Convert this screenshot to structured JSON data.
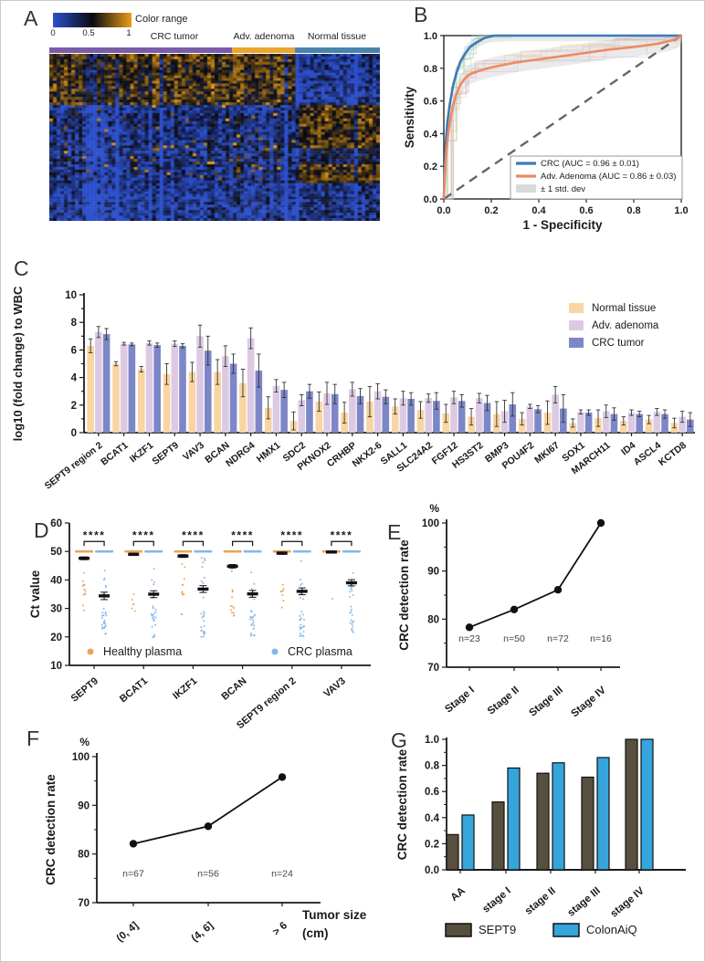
{
  "figure": {
    "panel_letters": [
      "A",
      "B",
      "C",
      "D",
      "E",
      "F",
      "G"
    ]
  },
  "chart_data": [
    {
      "panel": "A",
      "type": "heatmap",
      "colorbar": {
        "label": "Color range",
        "ticks": [
          "0",
          "0.5",
          "1"
        ],
        "gradient": [
          "#2d50cd",
          "#0a0a10",
          "#e89e16"
        ]
      },
      "groups": [
        {
          "label": "CRC tumor",
          "color": "#7a5ca8",
          "frac": 0.552
        },
        {
          "label": "Adv. adenoma",
          "color": "#eaa62d",
          "frac": 0.191
        },
        {
          "label": "Normal tissue",
          "color": "#4a84ad",
          "frac": 0.257
        }
      ],
      "blocks": [
        {
          "frac": 0.3,
          "means": [
            0.62,
            0.6,
            0.17
          ]
        },
        {
          "frac": 0.46,
          "means": [
            0.22,
            0.24,
            0.64
          ]
        },
        {
          "frac": 0.24,
          "means": [
            0.15,
            0.15,
            0.22
          ]
        }
      ],
      "colormap": [
        [
          45,
          80,
          205
        ],
        [
          10,
          10,
          16
        ],
        [
          232,
          158,
          22
        ]
      ],
      "value_range": [
        0,
        1
      ],
      "seed": 42
    },
    {
      "panel": "B",
      "type": "line",
      "xlabel": "1 - Specificity",
      "ylabel": "Sensitivity",
      "xlim": [
        0,
        1
      ],
      "ylim": [
        0,
        1
      ],
      "x_ticks": [
        "0.0",
        "0.2",
        "0.4",
        "0.6",
        "0.8",
        "1.0"
      ],
      "y_ticks": [
        "0.0",
        "0.2",
        "0.4",
        "0.6",
        "0.8",
        "1.0"
      ],
      "series": [
        {
          "name": "CRC (AUC = 0.96 ± 0.01)",
          "color": "#3d7ab5",
          "band": 0.035,
          "points": [
            [
              0,
              0
            ],
            [
              0.004,
              0.18
            ],
            [
              0.008,
              0.34
            ],
            [
              0.015,
              0.47
            ],
            [
              0.025,
              0.58
            ],
            [
              0.04,
              0.7
            ],
            [
              0.055,
              0.78
            ],
            [
              0.07,
              0.84
            ],
            [
              0.09,
              0.89
            ],
            [
              0.11,
              0.93
            ],
            [
              0.14,
              0.96
            ],
            [
              0.17,
              0.985
            ],
            [
              0.21,
              1
            ],
            [
              1,
              1
            ]
          ]
        },
        {
          "name": "Adv. Adenoma (AUC = 0.86 ± 0.03)",
          "color": "#ee8963",
          "band": 0.06,
          "points": [
            [
              0,
              0
            ],
            [
              0.004,
              0.12
            ],
            [
              0.01,
              0.28
            ],
            [
              0.02,
              0.42
            ],
            [
              0.035,
              0.55
            ],
            [
              0.05,
              0.63
            ],
            [
              0.07,
              0.7
            ],
            [
              0.09,
              0.74
            ],
            [
              0.11,
              0.765
            ],
            [
              0.15,
              0.785
            ],
            [
              0.2,
              0.805
            ],
            [
              0.3,
              0.835
            ],
            [
              0.4,
              0.855
            ],
            [
              0.5,
              0.875
            ],
            [
              0.6,
              0.895
            ],
            [
              0.7,
              0.915
            ],
            [
              0.8,
              0.93
            ],
            [
              0.9,
              0.95
            ],
            [
              0.97,
              0.975
            ],
            [
              1,
              1
            ]
          ]
        }
      ],
      "band_label": "± 1 std. dev",
      "band_color": "#bbbbbb",
      "fold_colors": [
        "#7fbf7f",
        "#5fb0a5",
        "#8fd0e8",
        "#a8c878",
        "#c5e0c5",
        "#e0c85a",
        "#e096bb",
        "#b9a5d8",
        "#efa898",
        "#d8b8c8",
        "#cccccc",
        "#e8d5a0"
      ],
      "diagonal": true,
      "seed": 7
    },
    {
      "panel": "C",
      "type": "bar",
      "ylabel": "log10 (fold change) to WBC",
      "ylim": [
        0,
        10
      ],
      "y_ticks": [
        "0",
        "2",
        "4",
        "6",
        "8",
        "10"
      ],
      "categories": [
        "SEPT9 region 2",
        "BCAT1",
        "IKZF1",
        "SEPT9",
        "VAV3",
        "BCAN",
        "NDRG4",
        "HMX1",
        "SDC2",
        "PKNOX2",
        "CRHBP",
        "NKX2-6",
        "SALL1",
        "SLC24A2",
        "FGF12",
        "HS3ST2",
        "BMP3",
        "POU4F2",
        "MKI67",
        "SOX1",
        "MARCH11",
        "ID4",
        "ASCL4",
        "KCTD8"
      ],
      "series": [
        {
          "name": "Normal tissue",
          "color": "#f8d5a2",
          "values": [
            6.3,
            5.0,
            4.6,
            4.25,
            4.4,
            4.4,
            3.6,
            1.8,
            0.85,
            2.25,
            1.45,
            2.25,
            1.9,
            1.65,
            1.4,
            1.15,
            1.35,
            1.0,
            1.45,
            0.7,
            1.05,
            0.85,
            0.95,
            0.7
          ],
          "errors": [
            0.5,
            0.15,
            0.2,
            0.75,
            0.7,
            0.9,
            1.0,
            0.8,
            0.65,
            0.7,
            0.75,
            1.1,
            0.55,
            0.6,
            0.65,
            0.6,
            0.9,
            0.45,
            0.85,
            0.3,
            0.6,
            0.3,
            0.3,
            0.35
          ]
        },
        {
          "name": "Adv. adenoma",
          "color": "#dccae4",
          "values": [
            7.3,
            6.45,
            6.5,
            6.45,
            7.0,
            5.55,
            6.85,
            3.4,
            2.35,
            2.85,
            3.15,
            3.0,
            2.5,
            2.5,
            2.55,
            2.5,
            1.55,
            1.9,
            2.75,
            1.5,
            1.55,
            1.45,
            1.5,
            1.15
          ],
          "errors": [
            0.4,
            0.1,
            0.15,
            0.2,
            0.8,
            0.75,
            0.75,
            0.45,
            0.4,
            0.8,
            0.5,
            0.55,
            0.5,
            0.3,
            0.45,
            0.35,
            0.8,
            0.15,
            0.6,
            0.15,
            0.45,
            0.2,
            0.25,
            0.4
          ]
        },
        {
          "name": "CRC tumor",
          "color": "#7d86c6",
          "values": [
            7.15,
            6.4,
            6.35,
            6.3,
            5.95,
            5.0,
            4.5,
            3.1,
            3.0,
            2.8,
            2.65,
            2.6,
            2.45,
            2.3,
            2.3,
            2.15,
            2.05,
            1.7,
            1.75,
            1.45,
            1.35,
            1.35,
            1.35,
            0.95
          ],
          "errors": [
            0.4,
            0.1,
            0.15,
            0.15,
            1.05,
            0.7,
            1.2,
            0.55,
            0.5,
            0.7,
            0.55,
            0.5,
            0.45,
            0.6,
            0.45,
            0.55,
            0.85,
            0.25,
            1.0,
            0.2,
            0.45,
            0.2,
            0.3,
            0.5
          ]
        }
      ]
    },
    {
      "panel": "D",
      "type": "scatter",
      "ylabel": "Ct value",
      "ylim": [
        10,
        60
      ],
      "y_ticks": [
        "10",
        "20",
        "30",
        "40",
        "50",
        "60"
      ],
      "categories": [
        "SEPT9",
        "BCAT1",
        "IKZF1",
        "BCAN",
        "SEPT9 region 2",
        "VAV3"
      ],
      "significance": "****",
      "cap_value": 50,
      "groups": [
        {
          "name": "Healthy plasma",
          "color": "#e8a45a"
        },
        {
          "name": "CRC plasma",
          "color": "#85b8e8"
        }
      ],
      "healthy": {
        "means": [
          47.6,
          49.0,
          48.4,
          44.8,
          49.4,
          49.8
        ],
        "errors": [
          0.5,
          0.4,
          0.5,
          0.6,
          0.4,
          0.3
        ],
        "strips": [
          [
            28,
            45,
            13
          ],
          [
            29,
            37,
            6
          ],
          [
            27,
            46,
            12
          ],
          [
            26,
            44,
            14
          ],
          [
            29,
            42,
            8
          ],
          [
            33,
            34,
            1
          ]
        ]
      },
      "crc": {
        "means": [
          34.4,
          35.0,
          36.8,
          35.1,
          36.0,
          39.0
        ],
        "errors": [
          1.3,
          1.2,
          1.2,
          1.2,
          1.2,
          1.1
        ],
        "strips_low": [
          [
            20.5,
            30,
            22
          ],
          [
            19,
            31,
            20
          ],
          [
            20,
            30,
            18
          ],
          [
            19.5,
            30,
            22
          ],
          [
            19.5,
            30,
            20
          ],
          [
            21.5,
            31,
            16
          ]
        ],
        "strips_high": [
          [
            33,
            45,
            7
          ],
          [
            33,
            44,
            6
          ],
          [
            33,
            48,
            9
          ],
          [
            33,
            46,
            6
          ],
          [
            33,
            48,
            8
          ],
          [
            33,
            44,
            8
          ]
        ]
      },
      "seed": 11
    },
    {
      "panel": "E",
      "type": "line",
      "ylabel": "CRC detection rate",
      "unit": "%",
      "ylim": [
        70,
        100
      ],
      "y_ticks": [
        "70",
        "80",
        "90",
        "100"
      ],
      "categories": [
        "Stage I",
        "Stage II",
        "Stage III",
        "Stage IV"
      ],
      "values": [
        78.3,
        82.0,
        86.1,
        100
      ],
      "n_labels": [
        "n=23",
        "n=50",
        "n=72",
        "n=16"
      ]
    },
    {
      "panel": "F",
      "type": "line",
      "ylabel": "CRC detection rate",
      "unit": "%",
      "ylim": [
        70,
        100
      ],
      "y_ticks": [
        "70",
        "80",
        "90",
        "100"
      ],
      "categories": [
        "(0, 4]",
        "(4, 6]",
        "> 6"
      ],
      "values": [
        82.1,
        85.7,
        95.8
      ],
      "n_labels": [
        "n=67",
        "n=56",
        "n=24"
      ],
      "xlabel_lines": [
        "Tumor size",
        "(cm)"
      ]
    },
    {
      "panel": "G",
      "type": "bar",
      "ylabel": "CRC detection rate",
      "ylim": [
        0,
        1
      ],
      "y_ticks": [
        "0.0",
        "0.2",
        "0.4",
        "0.6",
        "0.8",
        "1.0"
      ],
      "categories": [
        "AA",
        "stage I",
        "stage II",
        "stage III",
        "stage IV"
      ],
      "series": [
        {
          "name": "SEPT9",
          "color": "#57503e",
          "values": [
            0.27,
            0.52,
            0.74,
            0.71,
            1.0
          ]
        },
        {
          "name": "ColonAiQ",
          "color": "#35a5dc",
          "values": [
            0.42,
            0.78,
            0.82,
            0.86,
            1.0
          ]
        }
      ]
    }
  ]
}
